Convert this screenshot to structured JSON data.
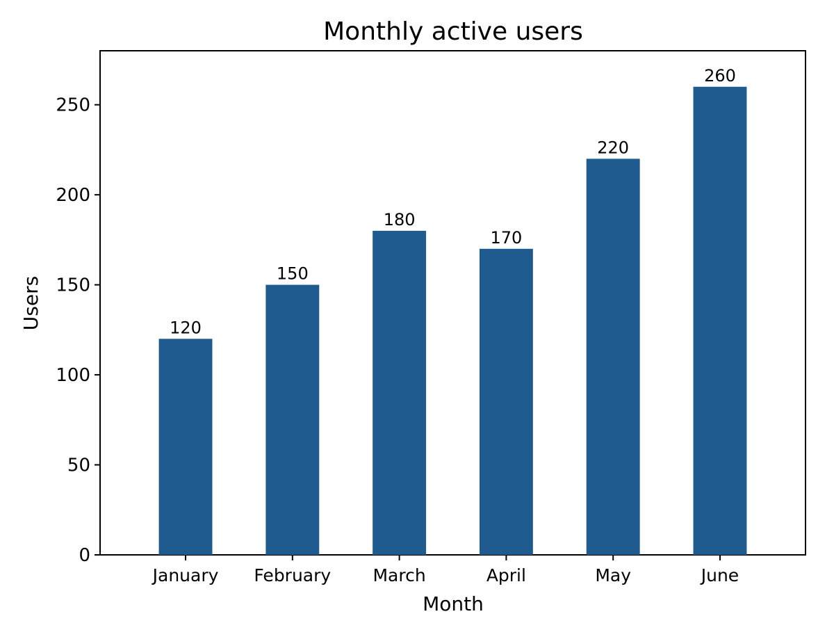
{
  "chart_data": {
    "type": "bar",
    "title": "Monthly active users",
    "xlabel": "Month",
    "ylabel": "Users",
    "categories": [
      "January",
      "February",
      "March",
      "April",
      "May",
      "June"
    ],
    "values": [
      120,
      150,
      180,
      170,
      220,
      260
    ],
    "data_labels": [
      "120",
      "150",
      "180",
      "170",
      "220",
      "260"
    ],
    "ylim": [
      0,
      280
    ],
    "yticks": [
      0,
      50,
      100,
      150,
      200,
      250
    ],
    "grid": false,
    "legend": "none",
    "bar_color": "#1f5b8f"
  }
}
